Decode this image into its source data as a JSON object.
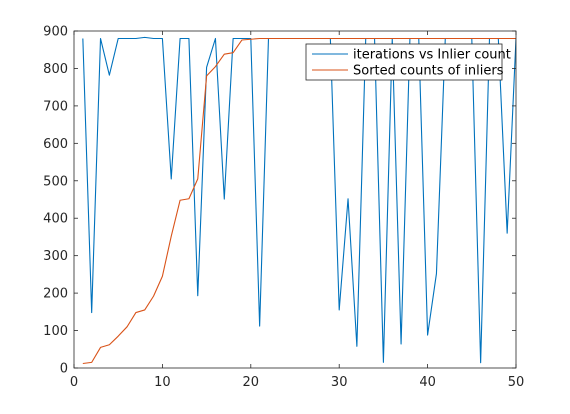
{
  "chart_data": {
    "type": "line",
    "title": "",
    "xlabel": "",
    "ylabel": "",
    "xlim": [
      0,
      50
    ],
    "ylim": [
      0,
      900
    ],
    "xticks": [
      0,
      10,
      20,
      30,
      40,
      50
    ],
    "yticks": [
      0,
      100,
      200,
      300,
      400,
      500,
      600,
      700,
      800,
      900
    ],
    "grid": false,
    "legend_position": "top-right",
    "x": [
      1,
      2,
      3,
      4,
      5,
      6,
      7,
      8,
      9,
      10,
      11,
      12,
      13,
      14,
      15,
      16,
      17,
      18,
      19,
      20,
      21,
      22,
      23,
      24,
      25,
      26,
      27,
      28,
      29,
      30,
      31,
      32,
      33,
      34,
      35,
      36,
      37,
      38,
      39,
      40,
      41,
      42,
      43,
      44,
      45,
      46,
      47,
      48,
      49,
      50
    ],
    "series": [
      {
        "name": "iterations vs Inlier count",
        "color": "#0072bd",
        "values": [
          880,
          148,
          880,
          782,
          880,
          880,
          880,
          883,
          880,
          880,
          505,
          880,
          880,
          193,
          803,
          880,
          451,
          880,
          880,
          880,
          112,
          880,
          880,
          880,
          880,
          880,
          880,
          880,
          880,
          155,
          452,
          58,
          880,
          880,
          15,
          880,
          64,
          880,
          880,
          88,
          252,
          880,
          880,
          880,
          880,
          14,
          880,
          880,
          360,
          880
        ]
      },
      {
        "name": "Sorted counts of inliers",
        "color": "#d95319",
        "values": [
          12,
          15,
          55,
          62,
          85,
          110,
          148,
          155,
          192,
          245,
          352,
          448,
          452,
          505,
          780,
          805,
          838,
          842,
          876,
          878,
          880,
          880,
          880,
          880,
          880,
          880,
          880,
          880,
          880,
          880,
          880,
          880,
          880,
          880,
          880,
          880,
          880,
          880,
          880,
          880,
          880,
          880,
          880,
          880,
          880,
          880,
          880,
          880,
          880,
          880
        ]
      }
    ]
  }
}
